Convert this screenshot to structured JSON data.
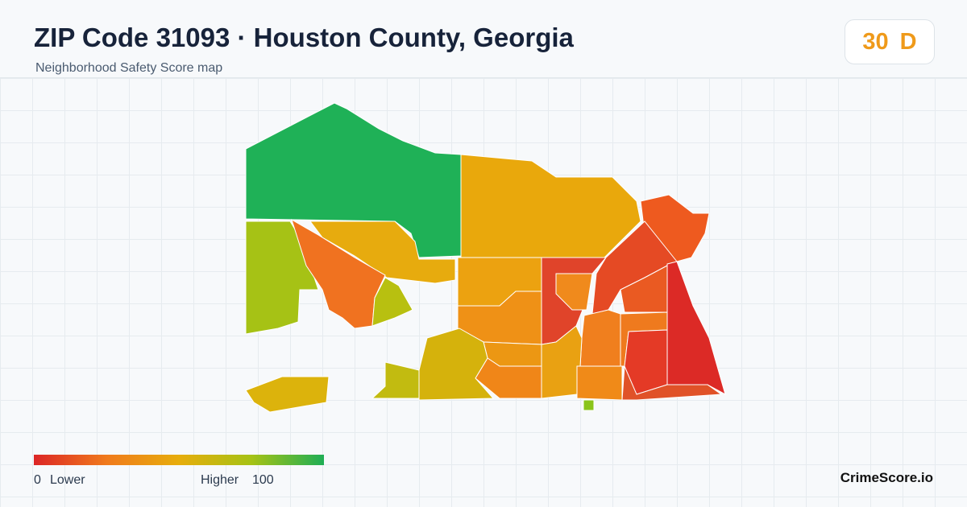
{
  "header": {
    "title": "ZIP Code 31093 · Houston County, Georgia",
    "subtitle": "Neighborhood Safety Score map"
  },
  "score": {
    "value": 30,
    "grade": "D"
  },
  "legend": {
    "min": 0,
    "min_label": "Lower",
    "max_label": "Higher",
    "max": 100
  },
  "brand": "CrimeScore.io"
}
